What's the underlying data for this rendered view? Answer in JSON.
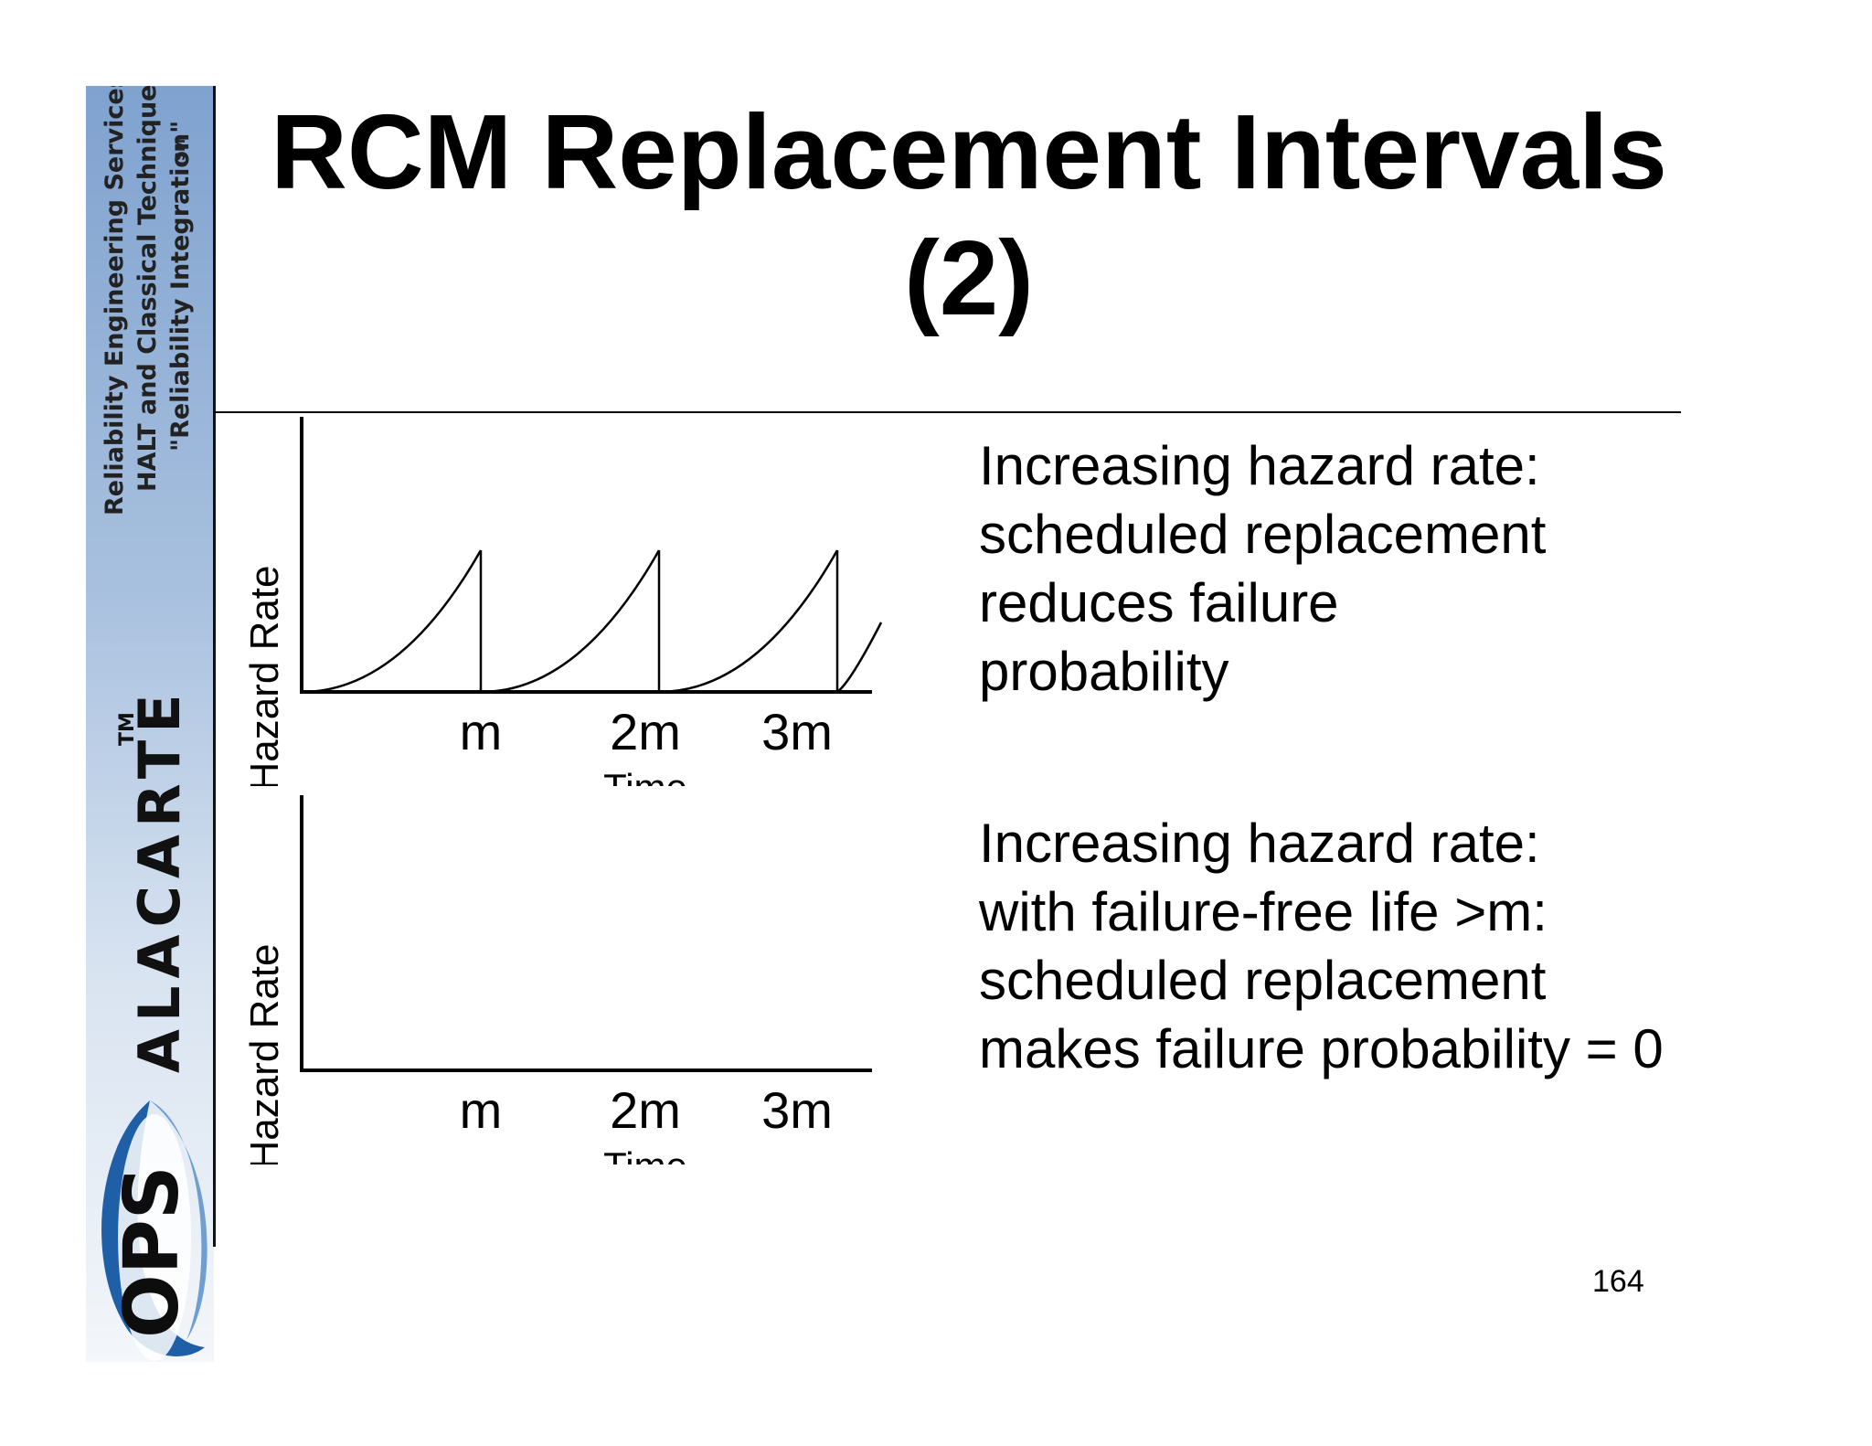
{
  "sidebar": {
    "services_lines": [
      "Reliability Engineering Services",
      "HALT and Classical Techniques",
      "\"Reliability Integration\""
    ],
    "service_mark": "SM",
    "brand_name": "ALACARTE",
    "brand_tm": "TM",
    "logo_text": "OPS",
    "colors": {
      "logo_blue": "#1f5fa8",
      "sidebar_top": "#7fa2cf"
    }
  },
  "title": {
    "line1": "RCM Replacement Intervals",
    "line2": "(2)"
  },
  "charts": [
    {
      "ylabel": "Hazard Rate",
      "xlabel": "Time",
      "ticks": [
        "m",
        "2m",
        "3m"
      ],
      "curve": "sawtooth"
    },
    {
      "ylabel": "Hazard Rate",
      "xlabel": "Time",
      "ticks": [
        "m",
        "2m",
        "3m"
      ],
      "curve": "none"
    }
  ],
  "descriptions": [
    {
      "lines": [
        "Increasing hazard rate:",
        "scheduled replacement",
        "reduces failure",
        "probability"
      ]
    },
    {
      "lines": [
        "Increasing hazard rate:",
        "with failure-free life >m:",
        "scheduled replacement",
        "makes failure probability = 0"
      ]
    }
  ],
  "page_number": "164"
}
